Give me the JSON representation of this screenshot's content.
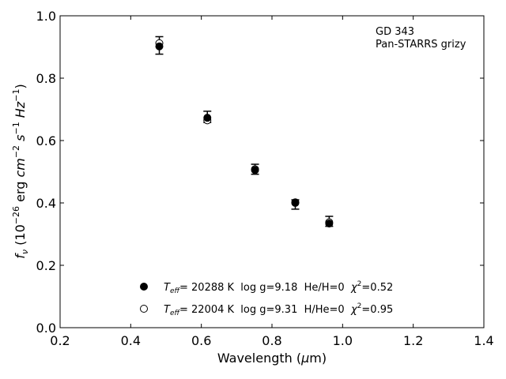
{
  "chart_data": {
    "type": "scatter",
    "xlabel": "Wavelength (μm)",
    "ylabel": "f_ν (10^-26 erg cm^-2 s^-1 Hz^-1)",
    "xlim": [
      0.2,
      1.4
    ],
    "ylim": [
      0.0,
      1.0
    ],
    "x_ticks": [
      "0.2",
      "0.4",
      "0.6",
      "0.8",
      "1.0",
      "1.2",
      "1.4"
    ],
    "y_ticks": [
      "0.0",
      "0.2",
      "0.4",
      "0.6",
      "0.8",
      "1.0"
    ],
    "grid": false,
    "annotation": {
      "line1": "GD 343",
      "line2": "Pan-STARRS grizy"
    },
    "observed": {
      "x": [
        0.481,
        0.617,
        0.752,
        0.866,
        0.962
      ],
      "y": [
        0.905,
        0.676,
        0.508,
        0.395,
        0.341
      ],
      "yerr": [
        0.028,
        0.018,
        0.016,
        0.015,
        0.016
      ]
    },
    "series": [
      {
        "name": "T_eff= 20288 K  log g=9.18  He/H=0  χ²=0.52",
        "marker": "filled-circle",
        "x": [
          0.481,
          0.617,
          0.752,
          0.866,
          0.962
        ],
        "y": [
          0.902,
          0.673,
          0.505,
          0.4,
          0.334
        ]
      },
      {
        "name": "T_eff= 22004 K  log g=9.31  H/He=0  χ²=0.95",
        "marker": "open-circle",
        "x": [
          0.481,
          0.617,
          0.752,
          0.866,
          0.962
        ],
        "y": [
          0.912,
          0.665,
          0.508,
          0.402,
          0.338
        ]
      }
    ],
    "legend": {
      "placement": "bottom-center",
      "entries": [
        {
          "teff_prefix": "T",
          "teff_sub": "eff",
          "text": "= 20288 K  log g=9.18  He/H=0  ",
          "chi": "χ",
          "chi_sup": "2",
          "chi_val": "=0.52"
        },
        {
          "teff_prefix": "T",
          "teff_sub": "eff",
          "text": "= 22004 K  log g=9.31  H/He=0  ",
          "chi": "χ",
          "chi_sup": "2",
          "chi_val": "=0.95"
        }
      ]
    }
  }
}
